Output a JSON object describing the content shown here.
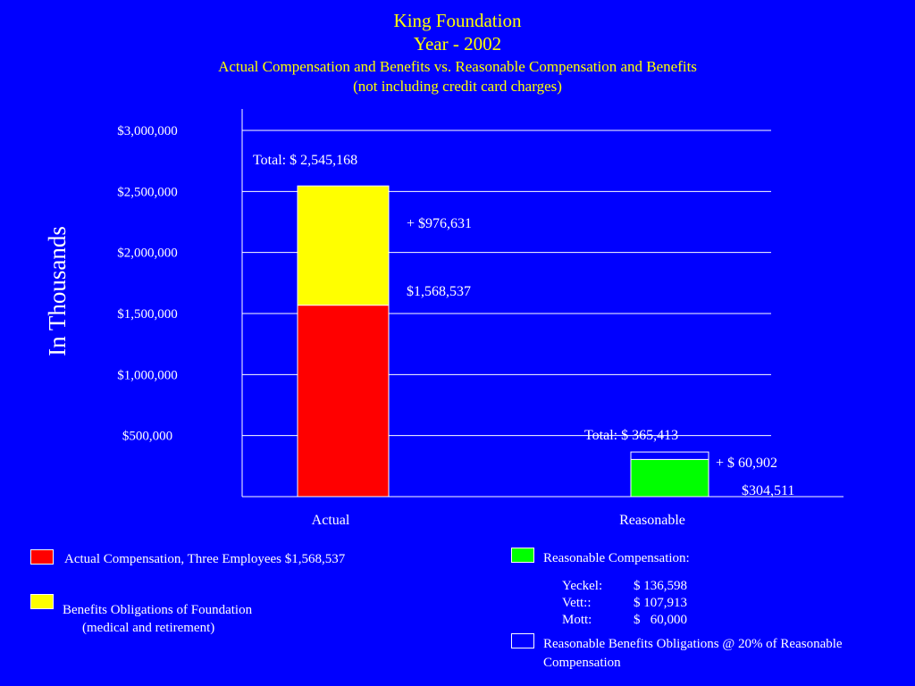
{
  "title": "King Foundation",
  "subtitle": "Year - 2002",
  "heading": "Actual Compensation and Benefits vs. Reasonable Compensation and Benefits",
  "note": "(not including credit card charges)",
  "colors": {
    "background": "#0000FF",
    "actual_compensation": "#FF0000",
    "benefits_obligations": "#FFFF00",
    "reasonable_compensation": "#00FF00",
    "reasonable_benefits": "#0000FF",
    "title_text": "#FFFF00"
  },
  "chart_data": {
    "type": "bar",
    "stacked": true,
    "categories": [
      "Actual",
      "Reasonable"
    ],
    "ylabel": "In Thousands",
    "ylim": [
      0,
      3000000
    ],
    "yticks": [
      {
        "value": 500000,
        "label": "$500,000"
      },
      {
        "value": 1000000,
        "label": "$1,000,000"
      },
      {
        "value": 1500000,
        "label": "$1,500,000"
      },
      {
        "value": 2000000,
        "label": "$2,000,000"
      },
      {
        "value": 2500000,
        "label": "$2,500,000"
      },
      {
        "value": 3000000,
        "label": "$3,000,000"
      }
    ],
    "grid": true,
    "bars": [
      {
        "category": "Actual",
        "total_label": "Total:  $ 2,545,168",
        "segments": [
          {
            "value": 1568537,
            "color": "#FF0000",
            "label": "$1,568,537"
          },
          {
            "value": 976631,
            "color": "#FFFF00",
            "label": "+ $976,631"
          }
        ]
      },
      {
        "category": "Reasonable",
        "total_label": "Total:  $ 365,413",
        "segments": [
          {
            "value": 304511,
            "color": "#00FF00",
            "label": "$304,511"
          },
          {
            "value": 60902,
            "color": "#0000FF",
            "label": "+ $ 60,902"
          }
        ]
      }
    ]
  },
  "legend": {
    "actual_comp": "Actual Compensation, Three Employees $1,568,537",
    "benefits_line1": "Benefits Obligations of Foundation",
    "benefits_line2": "(medical and retirement)",
    "reasonable_comp_title": "Reasonable Compensation:",
    "reasonable_comp_rows": [
      {
        "name": "Yeckel:",
        "amount": "$ 136,598"
      },
      {
        "name": "Vett::",
        "amount": "$ 107,913"
      },
      {
        "name": "Mott:",
        "amount": "$   60,000"
      }
    ],
    "reasonable_benefits_line1": "Reasonable Benefits Obligations @ 20% of Reasonable",
    "reasonable_benefits_line2": "Compensation"
  }
}
